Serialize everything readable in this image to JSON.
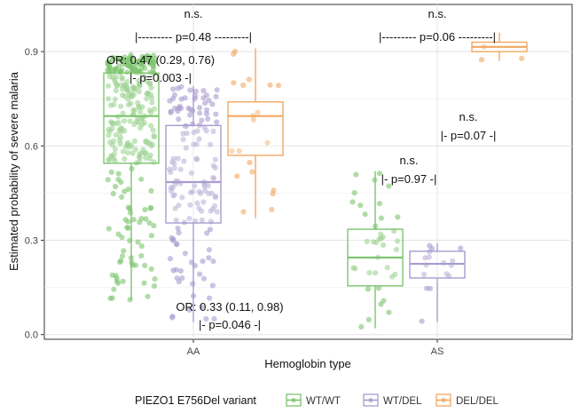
{
  "chart_data": {
    "type": "box",
    "title": "",
    "xlabel": "Hemoglobin type",
    "ylabel": "Estimated probability of severe malaria",
    "ylim": [
      -0.015,
      1.05
    ],
    "yticks": [
      0.0,
      0.3,
      0.6,
      0.9
    ],
    "ytick_labels": [
      "0.0",
      "0.3",
      "0.6",
      "0.9"
    ],
    "categories": [
      "AA",
      "AS"
    ],
    "grid": true,
    "legend": {
      "title": "PIEZO1 E756Del variant",
      "position": "bottom",
      "entries": [
        "WT/WT",
        "WT/DEL",
        "DEL/DEL"
      ]
    },
    "colors": {
      "WT/WT": "#7dc46e",
      "WT/DEL": "#a99bcf",
      "DEL/DEL": "#f2a862"
    },
    "series": [
      {
        "name": "WT/WT",
        "boxes": [
          {
            "category": "AA",
            "whisker_low": 0.11,
            "q1": 0.545,
            "median": 0.695,
            "q3": 0.832,
            "whisker_high": 0.89
          },
          {
            "category": "AS",
            "whisker_low": 0.02,
            "q1": 0.155,
            "median": 0.245,
            "q3": 0.335,
            "whisker_high": 0.52
          }
        ]
      },
      {
        "name": "WT/DEL",
        "boxes": [
          {
            "category": "AA",
            "whisker_low": 0.04,
            "q1": 0.355,
            "median": 0.485,
            "q3": 0.665,
            "whisker_high": 0.79
          },
          {
            "category": "AS",
            "whisker_low": 0.04,
            "q1": 0.18,
            "median": 0.225,
            "q3": 0.265,
            "whisker_high": 0.29
          }
        ]
      },
      {
        "name": "DEL/DEL",
        "boxes": [
          {
            "category": "AA",
            "whisker_low": 0.37,
            "q1": 0.57,
            "median": 0.695,
            "q3": 0.74,
            "whisker_high": 0.91
          },
          {
            "category": "AS",
            "whisker_low": 0.87,
            "q1": 0.9,
            "median": 0.915,
            "q3": 0.93,
            "whisker_high": 0.96
          }
        ]
      }
    ],
    "annotations": [
      {
        "id": "aa-top-ns",
        "text": "n.s."
      },
      {
        "id": "aa-top-p",
        "text": "|--------- p=0.48 ---------|"
      },
      {
        "id": "aa-or1",
        "text": "OR: 0.47 (0.29, 0.76)"
      },
      {
        "id": "aa-or1-p",
        "text": "|- p=0.003 -|"
      },
      {
        "id": "aa-or2",
        "text": "OR: 0.33 (0.11, 0.98)"
      },
      {
        "id": "aa-or2-p",
        "text": "|- p=0.046 -|"
      },
      {
        "id": "as-top-ns",
        "text": "n.s."
      },
      {
        "id": "as-top-p",
        "text": "|--------- p=0.06 ---------|"
      },
      {
        "id": "as-ns-2",
        "text": "n.s."
      },
      {
        "id": "as-p-007",
        "text": "|- p=0.07 -|"
      },
      {
        "id": "as-ns-3",
        "text": "n.s."
      },
      {
        "id": "as-p-097",
        "text": "|- p=0.97 -|"
      }
    ]
  }
}
